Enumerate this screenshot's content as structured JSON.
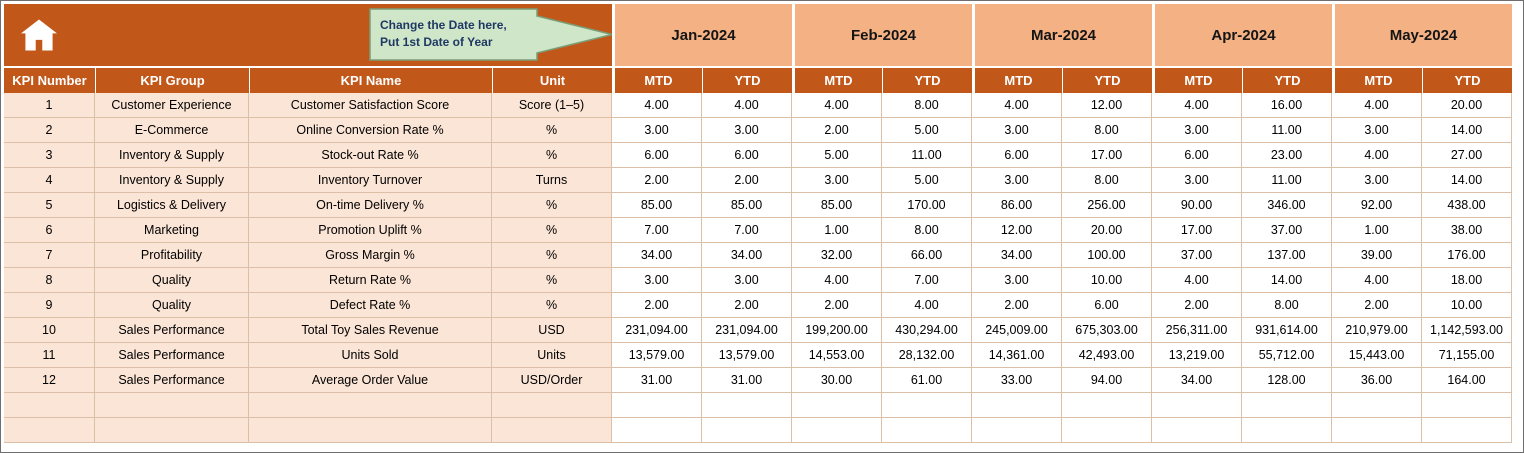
{
  "callout": {
    "line1": "Change the Date here,",
    "line2": "Put 1st Date of Year"
  },
  "table": {
    "months": [
      "Jan-2024",
      "Feb-2024",
      "Mar-2024",
      "Apr-2024",
      "May-2024"
    ],
    "sub_headers": [
      "MTD",
      "YTD"
    ],
    "columns": [
      "KPI Number",
      "KPI Group",
      "KPI Name",
      "Unit"
    ],
    "rows": [
      {
        "num": "1",
        "group": "Customer Experience",
        "name": "Customer Satisfaction Score",
        "unit": "Score (1–5)",
        "values": [
          "4.00",
          "4.00",
          "4.00",
          "8.00",
          "4.00",
          "12.00",
          "4.00",
          "16.00",
          "4.00",
          "20.00"
        ]
      },
      {
        "num": "2",
        "group": "E-Commerce",
        "name": "Online Conversion Rate %",
        "unit": "%",
        "values": [
          "3.00",
          "3.00",
          "2.00",
          "5.00",
          "3.00",
          "8.00",
          "3.00",
          "11.00",
          "3.00",
          "14.00"
        ]
      },
      {
        "num": "3",
        "group": "Inventory & Supply",
        "name": "Stock-out Rate %",
        "unit": "%",
        "values": [
          "6.00",
          "6.00",
          "5.00",
          "11.00",
          "6.00",
          "17.00",
          "6.00",
          "23.00",
          "4.00",
          "27.00"
        ]
      },
      {
        "num": "4",
        "group": "Inventory & Supply",
        "name": "Inventory Turnover",
        "unit": "Turns",
        "values": [
          "2.00",
          "2.00",
          "3.00",
          "5.00",
          "3.00",
          "8.00",
          "3.00",
          "11.00",
          "3.00",
          "14.00"
        ]
      },
      {
        "num": "5",
        "group": "Logistics & Delivery",
        "name": "On-time Delivery %",
        "unit": "%",
        "values": [
          "85.00",
          "85.00",
          "85.00",
          "170.00",
          "86.00",
          "256.00",
          "90.00",
          "346.00",
          "92.00",
          "438.00"
        ]
      },
      {
        "num": "6",
        "group": "Marketing",
        "name": "Promotion Uplift %",
        "unit": "%",
        "values": [
          "7.00",
          "7.00",
          "1.00",
          "8.00",
          "12.00",
          "20.00",
          "17.00",
          "37.00",
          "1.00",
          "38.00"
        ]
      },
      {
        "num": "7",
        "group": "Profitability",
        "name": "Gross Margin %",
        "unit": "%",
        "values": [
          "34.00",
          "34.00",
          "32.00",
          "66.00",
          "34.00",
          "100.00",
          "37.00",
          "137.00",
          "39.00",
          "176.00"
        ]
      },
      {
        "num": "8",
        "group": "Quality",
        "name": "Return Rate %",
        "unit": "%",
        "values": [
          "3.00",
          "3.00",
          "4.00",
          "7.00",
          "3.00",
          "10.00",
          "4.00",
          "14.00",
          "4.00",
          "18.00"
        ]
      },
      {
        "num": "9",
        "group": "Quality",
        "name": "Defect Rate %",
        "unit": "%",
        "values": [
          "2.00",
          "2.00",
          "2.00",
          "4.00",
          "2.00",
          "6.00",
          "2.00",
          "8.00",
          "2.00",
          "10.00"
        ]
      },
      {
        "num": "10",
        "group": "Sales Performance",
        "name": "Total Toy Sales Revenue",
        "unit": "USD",
        "values": [
          "231,094.00",
          "231,094.00",
          "199,200.00",
          "430,294.00",
          "245,009.00",
          "675,303.00",
          "256,311.00",
          "931,614.00",
          "210,979.00",
          "1,142,593.00"
        ]
      },
      {
        "num": "11",
        "group": "Sales Performance",
        "name": "Units Sold",
        "unit": "Units",
        "values": [
          "13,579.00",
          "13,579.00",
          "14,553.00",
          "28,132.00",
          "14,361.00",
          "42,493.00",
          "13,219.00",
          "55,712.00",
          "15,443.00",
          "71,155.00"
        ]
      },
      {
        "num": "12",
        "group": "Sales Performance",
        "name": "Average Order Value",
        "unit": "USD/Order",
        "values": [
          "31.00",
          "31.00",
          "30.00",
          "61.00",
          "33.00",
          "94.00",
          "34.00",
          "128.00",
          "36.00",
          "164.00"
        ]
      }
    ],
    "empty_rows": 2
  },
  "icons": {
    "home": "home-icon"
  },
  "colors": {
    "header_rust": "#C2571A",
    "month_header": "#F4B183",
    "row_tint": "#FBE5D6",
    "grid_line": "#DBBFA6",
    "callout_fill": "#CFE7C8",
    "callout_border": "#7A9E77"
  }
}
